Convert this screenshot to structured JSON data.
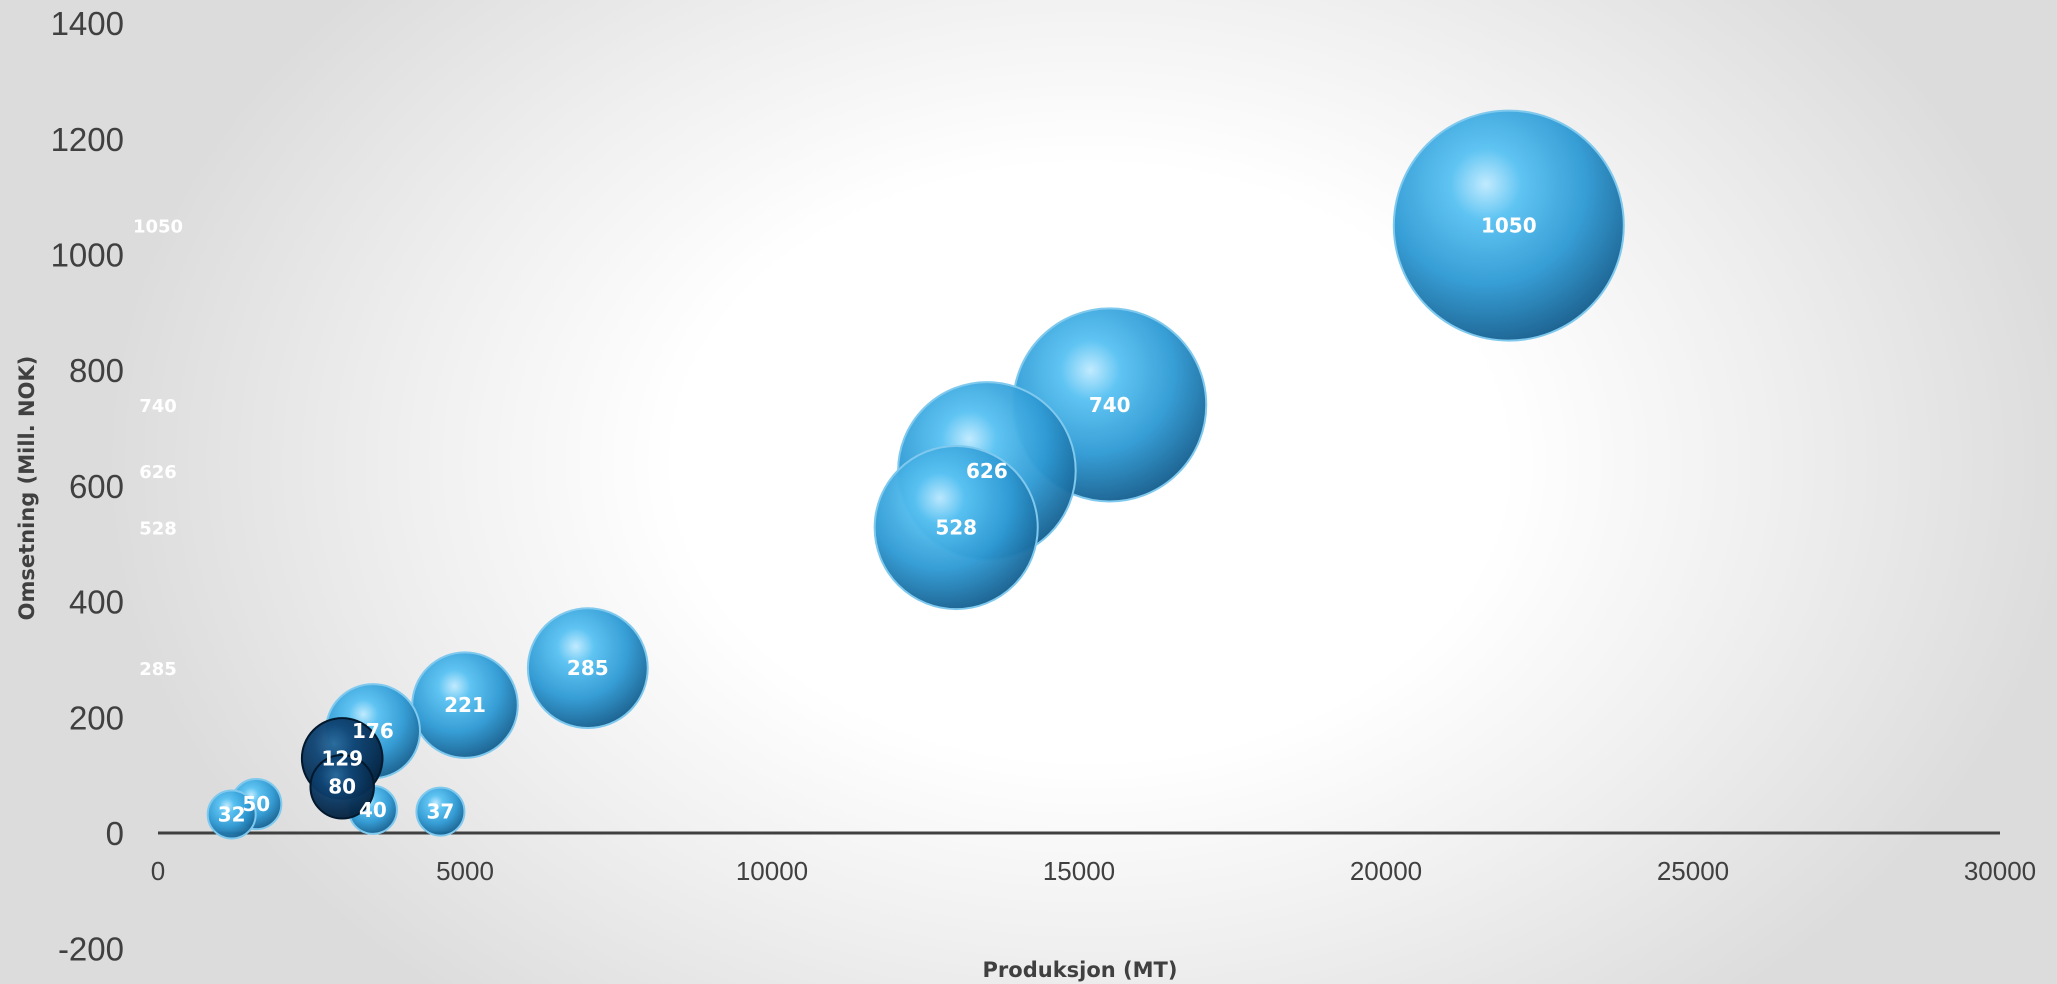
{
  "chart_data": {
    "type": "bubble",
    "xlabel": "Produksjon (MT)",
    "ylabel": "Omsetning (Mill. NOK)",
    "xlim": [
      0,
      30000
    ],
    "ylim": [
      -200,
      1400
    ],
    "xticks": [
      "0",
      "5000",
      "10000",
      "15000",
      "20000",
      "25000",
      "30000"
    ],
    "yticks": [
      "-200",
      "0",
      "200",
      "400",
      "600",
      "800",
      "1000",
      "1200",
      "1400"
    ],
    "grid": false,
    "legend": "none",
    "points": [
      {
        "x": 22000,
        "y": 1050,
        "size": 1050,
        "label": "1050",
        "color": "#3fa9e0"
      },
      {
        "x": 15500,
        "y": 740,
        "size": 740,
        "label": "740",
        "color": "#3fa9e0"
      },
      {
        "x": 13500,
        "y": 626,
        "size": 626,
        "label": "626",
        "color": "#3fa9e0"
      },
      {
        "x": 13000,
        "y": 528,
        "size": 528,
        "label": "528",
        "color": "#3fa9e0"
      },
      {
        "x": 7000,
        "y": 285,
        "size": 285,
        "label": "285",
        "color": "#3fa9e0"
      },
      {
        "x": 5000,
        "y": 221,
        "size": 221,
        "label": "221",
        "color": "#3fa9e0"
      },
      {
        "x": 3500,
        "y": 176,
        "size": 176,
        "label": "176",
        "color": "#3fa9e0"
      },
      {
        "x": 4600,
        "y": 37,
        "size": 37,
        "label": "37",
        "color": "#3fa9e0"
      },
      {
        "x": 3500,
        "y": 40,
        "size": 40,
        "label": "40",
        "color": "#3fa9e0"
      },
      {
        "x": 1600,
        "y": 50,
        "size": 50,
        "label": "50",
        "color": "#3fa9e0"
      },
      {
        "x": 1200,
        "y": 32,
        "size": 32,
        "label": "32",
        "color": "#3fa9e0"
      },
      {
        "x": 3000,
        "y": 129,
        "size": 129,
        "label": "129",
        "color": "#0b3b66"
      },
      {
        "x": 3000,
        "y": 80,
        "size": 80,
        "label": "80",
        "color": "#0b3b66"
      }
    ],
    "side_labels": [
      {
        "value": 1050,
        "label": "1050"
      },
      {
        "value": 740,
        "label": "740"
      },
      {
        "value": 626,
        "label": "626"
      },
      {
        "value": 528,
        "label": "528"
      },
      {
        "value": 285,
        "label": "285"
      }
    ]
  }
}
